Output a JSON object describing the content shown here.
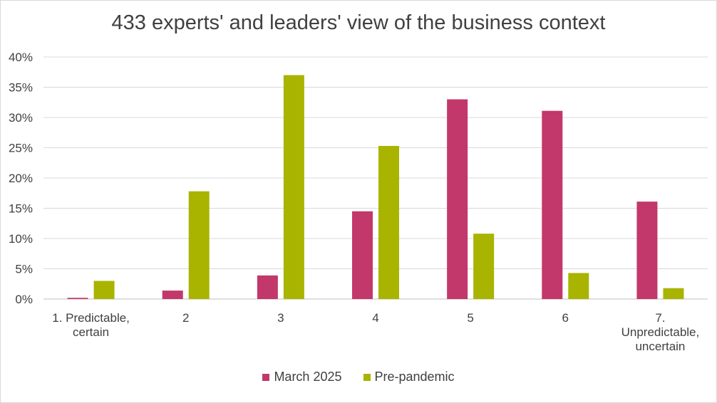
{
  "chart_data": {
    "type": "bar",
    "title": "433 experts' and leaders' view of the business context",
    "xlabel": "",
    "ylabel": "",
    "categories": [
      [
        "1. Predictable,",
        "certain"
      ],
      [
        "2"
      ],
      [
        "3"
      ],
      [
        "4"
      ],
      [
        "5"
      ],
      [
        "6"
      ],
      [
        "7.",
        "Unpredictable,",
        "uncertain"
      ]
    ],
    "series": [
      {
        "name": "March 2025",
        "color": "#c2386b",
        "values": [
          0.2,
          1.4,
          3.9,
          14.5,
          33.0,
          31.1,
          16.1
        ]
      },
      {
        "name": "Pre-pandemic",
        "color": "#a8b400",
        "values": [
          3.0,
          17.8,
          37.0,
          25.3,
          10.8,
          4.3,
          1.8
        ]
      }
    ],
    "ylim": [
      0,
      40
    ],
    "yticks": [
      "0%",
      "5%",
      "10%",
      "15%",
      "20%",
      "25%",
      "30%",
      "35%",
      "40%"
    ],
    "grid": true,
    "legend_position": "bottom"
  }
}
